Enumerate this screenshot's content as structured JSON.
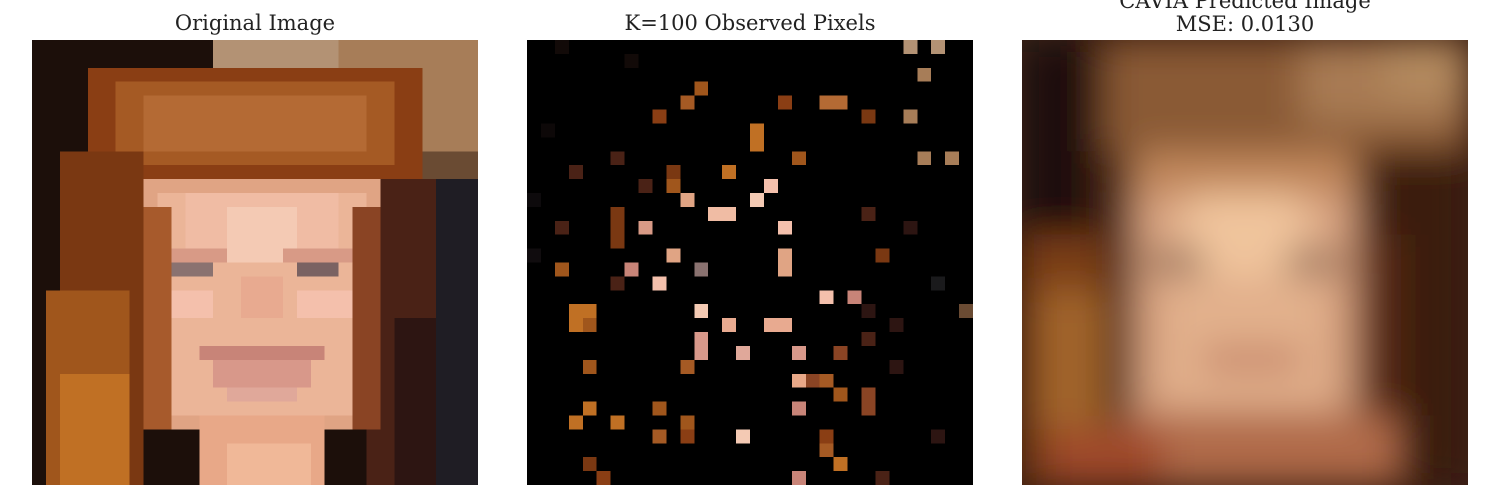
{
  "figure": {
    "panels": [
      {
        "title": "Original Image"
      },
      {
        "title": "K=100 Observed Pixels"
      },
      {
        "title_line1": "CAVIA Predicted Image",
        "title_line2": "MSE: 0.0130"
      }
    ],
    "colors": {
      "background": "#000000",
      "hair_dark": "#3a1a0c",
      "hair": "#a0521e",
      "hair_light": "#c8783a",
      "skin": "#e8b49a",
      "skin_light": "#f4c8b4",
      "lips": "#c88478",
      "eyes": "#7a6a68",
      "top_right_bg": "#b89a80",
      "predicted_bg": "#5a3218",
      "predicted_skin": "#e6b48c"
    }
  }
}
